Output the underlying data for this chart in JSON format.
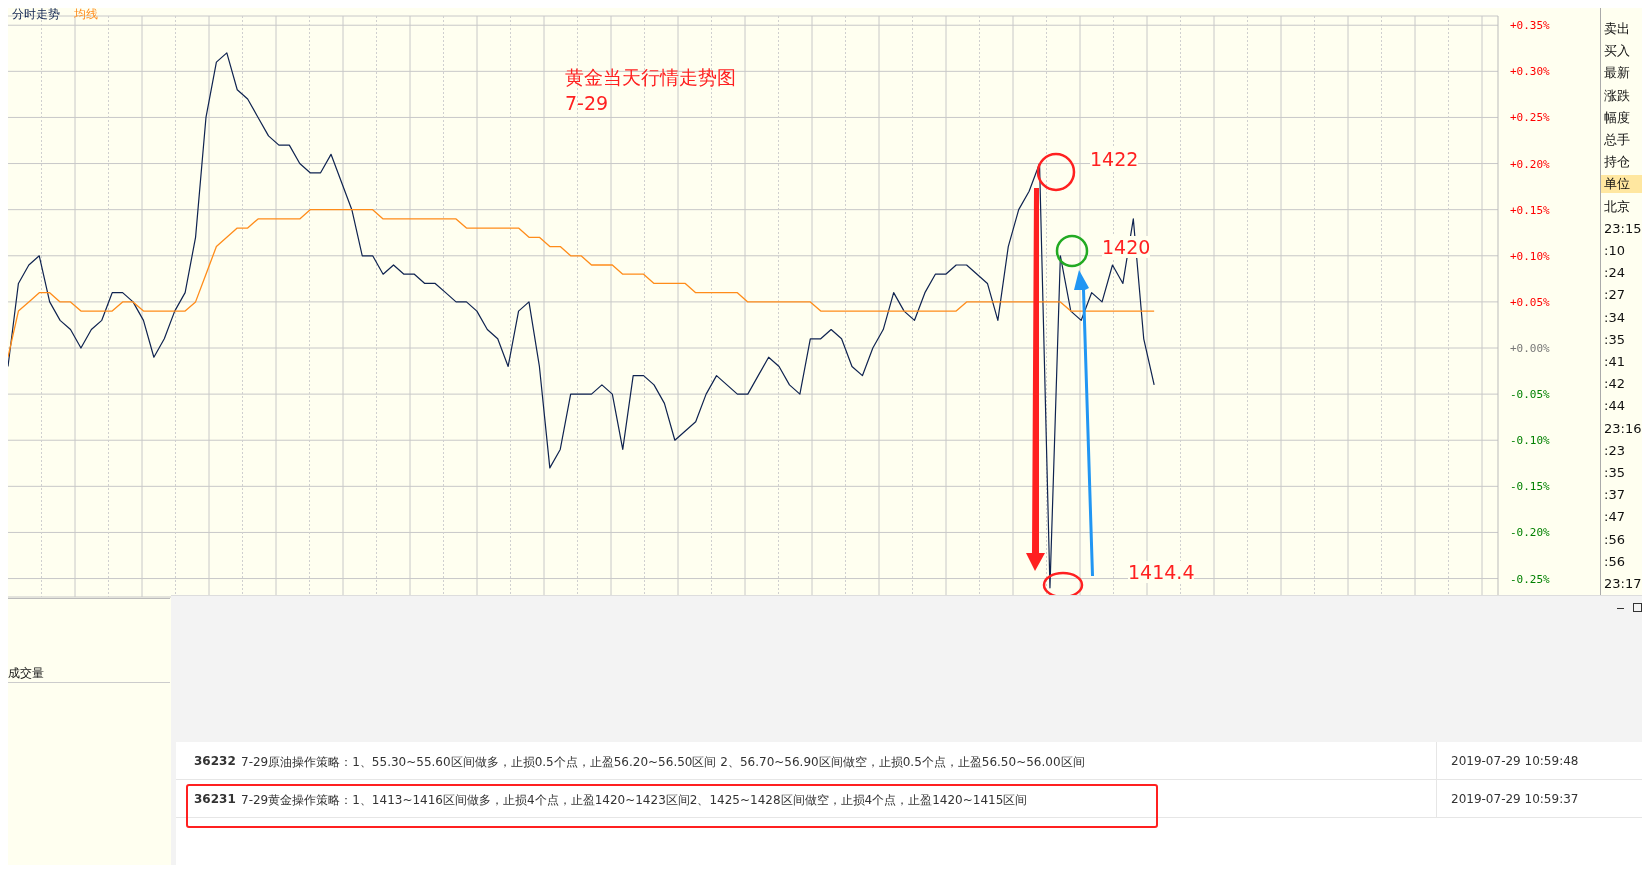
{
  "chart_data": {
    "type": "line",
    "title": "黄金当天行情走势图",
    "subtitle": "7-29",
    "categories": [
      null,
      null,
      null,
      null,
      null,
      null,
      null,
      null,
      null,
      null,
      null,
      null,
      null,
      null,
      null,
      null,
      null,
      null,
      null,
      null,
      null,
      null,
      null,
      null,
      null,
      null,
      null,
      null,
      null,
      null,
      null,
      null,
      null,
      null,
      null,
      null,
      null,
      null,
      null,
      null,
      null,
      null,
      null,
      null,
      null,
      null,
      null,
      null,
      null,
      null,
      null,
      null,
      null,
      null,
      null,
      null,
      null,
      null,
      null,
      null,
      null,
      null,
      null,
      null,
      null,
      null,
      null,
      null,
      null,
      null,
      null,
      null,
      null,
      null,
      null,
      null,
      null,
      null,
      null,
      null,
      null,
      null,
      null,
      null,
      null,
      null,
      null,
      null,
      null,
      null,
      null,
      null,
      null,
      null,
      null,
      null,
      null,
      null,
      null,
      null,
      null,
      null,
      null,
      null,
      null,
      null,
      null,
      null,
      null,
      null,
      null,
      null,
      null,
      null,
      null,
      null,
      null,
      null,
      null,
      null,
      null,
      null,
      null,
      null,
      null,
      null,
      null,
      null,
      null,
      null,
      null,
      null,
      null,
      null,
      null,
      null,
      null,
      null,
      null,
      null,
      null,
      null,
      null,
      null
    ],
    "series": [
      {
        "name": "分时走势",
        "color": "#0f2350",
        "values": [
          -0.02,
          0.07,
          0.09,
          0.1,
          0.05,
          0.03,
          0.02,
          0.0,
          0.02,
          0.03,
          0.06,
          0.06,
          0.05,
          0.03,
          -0.01,
          0.01,
          0.04,
          0.06,
          0.12,
          0.25,
          0.31,
          0.32,
          0.28,
          0.27,
          0.25,
          0.23,
          0.22,
          0.22,
          0.2,
          0.19,
          0.19,
          0.21,
          0.18,
          0.15,
          0.1,
          0.1,
          0.08,
          0.09,
          0.08,
          0.08,
          0.07,
          0.07,
          0.06,
          0.05,
          0.05,
          0.04,
          0.02,
          0.01,
          -0.02,
          0.04,
          0.05,
          -0.02,
          -0.13,
          -0.11,
          -0.05,
          -0.05,
          -0.05,
          -0.04,
          -0.05,
          -0.11,
          -0.03,
          -0.03,
          -0.04,
          -0.06,
          -0.1,
          -0.09,
          -0.08,
          -0.05,
          -0.03,
          -0.04,
          -0.05,
          -0.05,
          -0.03,
          -0.01,
          -0.02,
          -0.04,
          -0.05,
          0.01,
          0.01,
          0.02,
          0.01,
          -0.02,
          -0.03,
          0.0,
          0.02,
          0.06,
          0.04,
          0.03,
          0.06,
          0.08,
          0.08,
          0.09,
          0.09,
          0.08,
          0.07,
          0.03,
          0.11,
          0.15,
          0.17,
          0.2,
          -0.26,
          0.1,
          0.04,
          0.03,
          0.06,
          0.05,
          0.09,
          0.07,
          0.14,
          0.01,
          -0.04,
          null,
          null,
          null,
          null,
          null,
          null,
          null,
          null,
          null,
          null,
          null,
          null,
          null,
          null,
          null,
          null,
          null,
          null,
          null,
          null,
          null,
          null,
          null,
          null,
          null,
          null,
          null,
          null,
          null,
          null,
          null,
          null,
          null
        ]
      },
      {
        "name": "均线",
        "color": "#ff8c1a",
        "values": [
          -0.01,
          0.04,
          0.05,
          0.06,
          0.06,
          0.05,
          0.05,
          0.04,
          0.04,
          0.04,
          0.04,
          0.05,
          0.05,
          0.04,
          0.04,
          0.04,
          0.04,
          0.04,
          0.05,
          0.08,
          0.11,
          0.12,
          0.13,
          0.13,
          0.14,
          0.14,
          0.14,
          0.14,
          0.14,
          0.15,
          0.15,
          0.15,
          0.15,
          0.15,
          0.15,
          0.15,
          0.14,
          0.14,
          0.14,
          0.14,
          0.14,
          0.14,
          0.14,
          0.14,
          0.13,
          0.13,
          0.13,
          0.13,
          0.13,
          0.13,
          0.12,
          0.12,
          0.11,
          0.11,
          0.1,
          0.1,
          0.09,
          0.09,
          0.09,
          0.08,
          0.08,
          0.08,
          0.07,
          0.07,
          0.07,
          0.07,
          0.06,
          0.06,
          0.06,
          0.06,
          0.06,
          0.05,
          0.05,
          0.05,
          0.05,
          0.05,
          0.05,
          0.05,
          0.04,
          0.04,
          0.04,
          0.04,
          0.04,
          0.04,
          0.04,
          0.04,
          0.04,
          0.04,
          0.04,
          0.04,
          0.04,
          0.04,
          0.05,
          0.05,
          0.05,
          0.05,
          0.05,
          0.05,
          0.05,
          0.05,
          0.05,
          0.05,
          0.04,
          0.04,
          0.04,
          0.04,
          0.04,
          0.04,
          0.04,
          0.04,
          0.04,
          null,
          null,
          null,
          null,
          null,
          null,
          null,
          null,
          null,
          null,
          null,
          null,
          null,
          null,
          null,
          null,
          null,
          null,
          null,
          null,
          null,
          null,
          null,
          null,
          null,
          null,
          null,
          null,
          null,
          null,
          null,
          null,
          null
        ]
      }
    ],
    "ylim": [
      -0.27,
      0.36
    ],
    "yticks": [
      {
        "value": 0.35,
        "label": "+0.35%"
      },
      {
        "value": 0.3,
        "label": "+0.30%"
      },
      {
        "value": 0.25,
        "label": "+0.25%"
      },
      {
        "value": 0.2,
        "label": "+0.20%"
      },
      {
        "value": 0.15,
        "label": "+0.15%"
      },
      {
        "value": 0.1,
        "label": "+0.10%"
      },
      {
        "value": 0.05,
        "label": "+0.05%"
      },
      {
        "value": 0,
        "label": "+0.00%"
      },
      {
        "value": -0.05,
        "label": "-0.05%"
      },
      {
        "value": -0.1,
        "label": "-0.10%"
      },
      {
        "value": -0.15,
        "label": "-0.15%"
      },
      {
        "value": -0.2,
        "label": "-0.20%"
      },
      {
        "value": -0.25,
        "label": "-0.25%"
      }
    ],
    "grid": true,
    "legend": "top left",
    "annotations": [
      "1422",
      "1420",
      "1414.4",
      "成交量",
      "卖出",
      "买入",
      "最新",
      "涨跌",
      "幅度",
      "总手",
      "持仓",
      "单位",
      "北京",
      "23:15",
      ":10",
      ":24",
      ":27",
      ":34",
      ":35",
      ":41",
      ":42",
      ":44",
      "23:16",
      ":23",
      ":35",
      ":37",
      ":47",
      ":56",
      ":56",
      "23:17",
      "36232",
      "7-29原油操作策略：1、55.30~55.60区间做多，止损0.5个点，止盈56.20~56.50区间 2、56.70~56.90区间做空，止损0.5个点，止盈56.50~56.00区间",
      "2019-07-29 10:59:48",
      "36231",
      "7-29黄金操作策略：1、1413~1416区间做多，止损4个点，止盈1420~1423区间2、1425~1428区间做空，止损4个点，止盈1420~1415区间",
      "2019-07-29 10:59:37"
    ]
  }
}
